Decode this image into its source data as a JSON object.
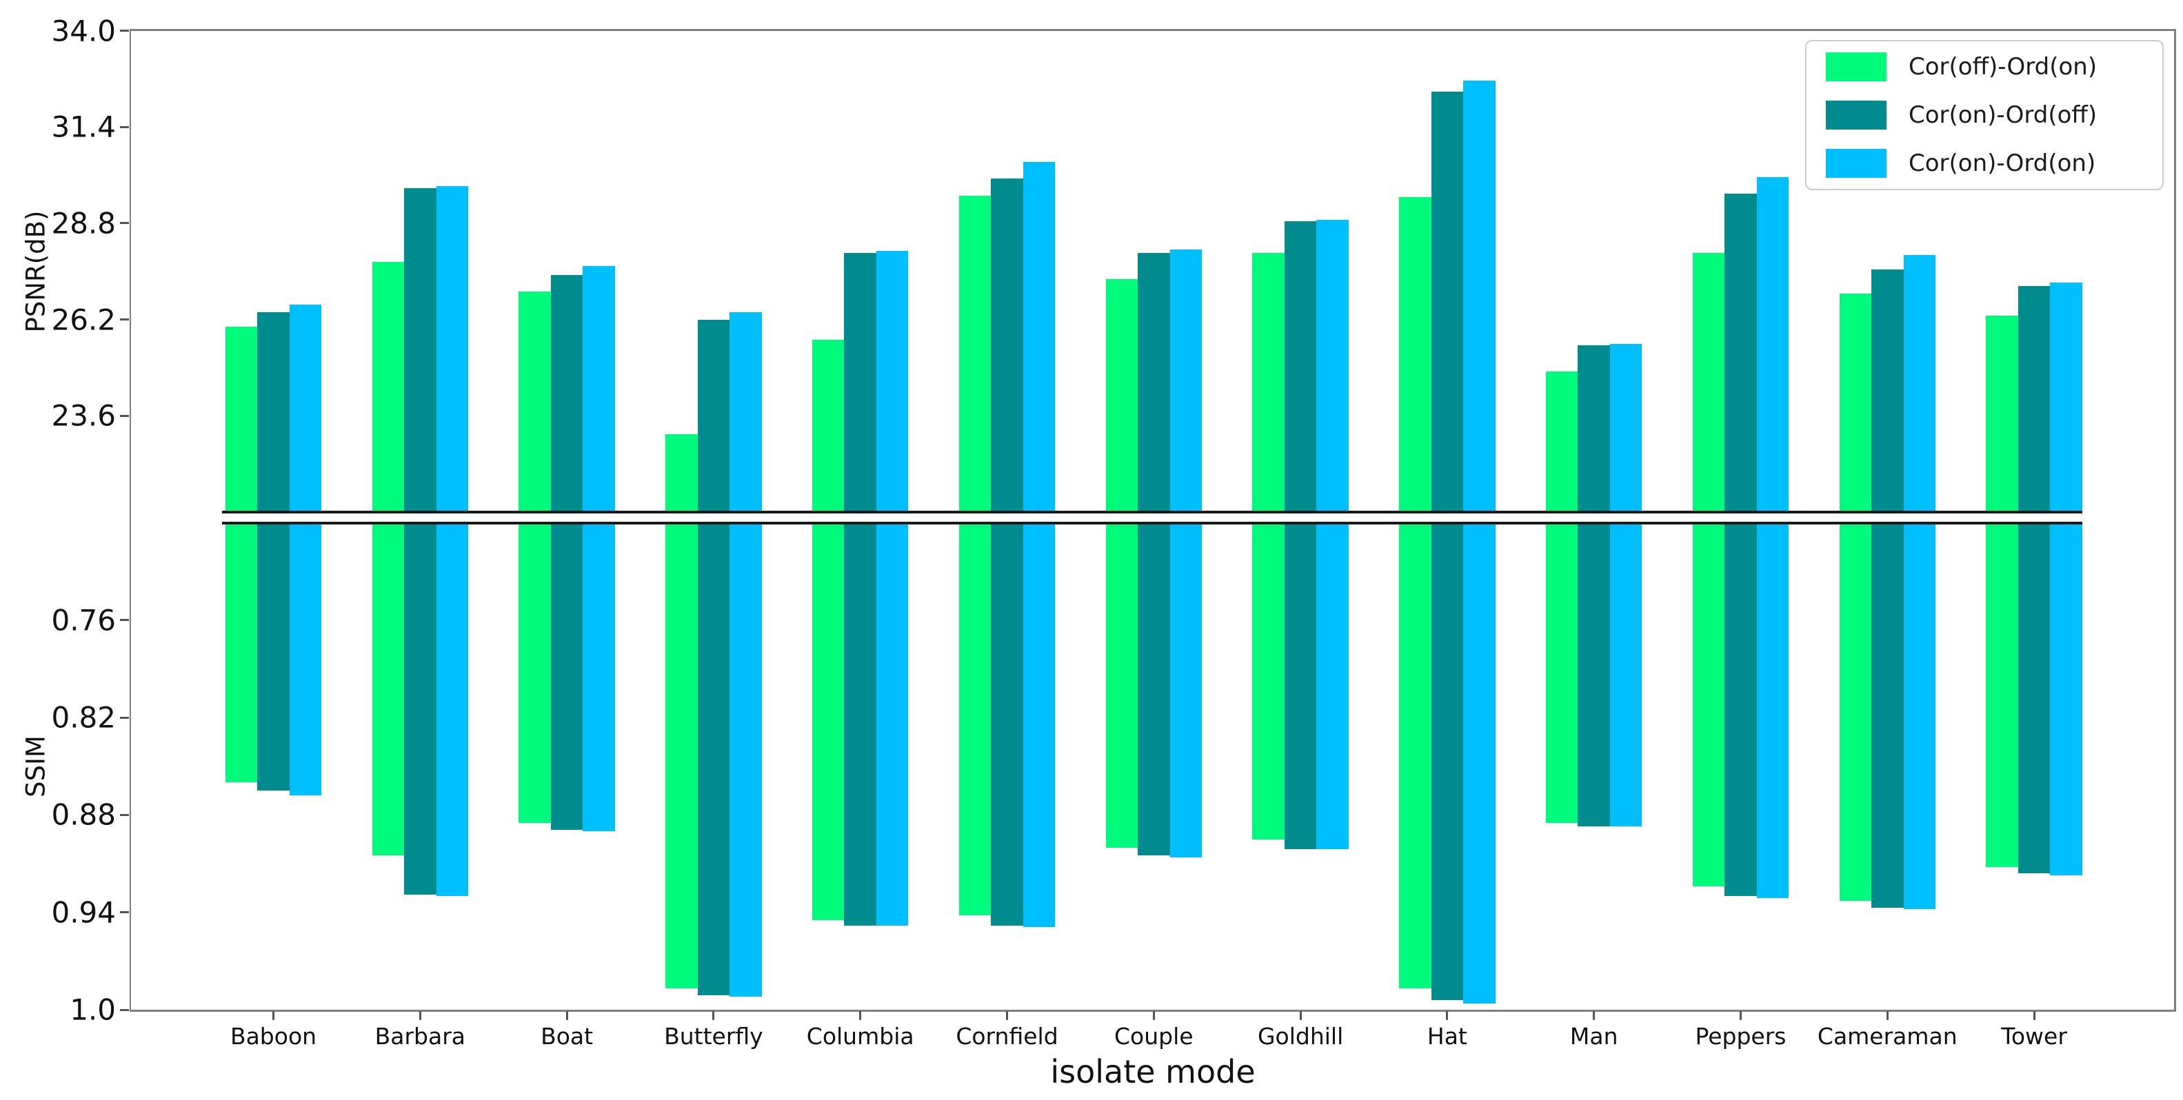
{
  "chart_data": {
    "type": "bar",
    "title": "",
    "xlabel": "isolate mode",
    "categories": [
      "Baboon",
      "Barbara",
      "Boat",
      "Butterfly",
      "Columbia",
      "Cornfield",
      "Couple",
      "Goldhill",
      "Hat",
      "Man",
      "Peppers",
      "Cameraman",
      "Tower"
    ],
    "legend_position": "upper right",
    "grid": false,
    "panels": [
      {
        "id": "psnr",
        "ylabel": "PSNR(dB)",
        "ylim": [
          21.0,
          34.0
        ],
        "yticks": [
          "34.0",
          "31.4",
          "28.8",
          "26.2",
          "23.6"
        ],
        "ytick_values": [
          34.0,
          31.4,
          28.8,
          26.2,
          23.6
        ],
        "direction": "up",
        "series": [
          {
            "name": "Cor(off)-Ord(on)",
            "values": [
              26.0,
              27.75,
              26.95,
              23.1,
              25.65,
              29.55,
              27.3,
              28.0,
              29.5,
              24.8,
              28.0,
              26.9,
              26.3
            ]
          },
          {
            "name": "Cor(on)-Ord(off)",
            "values": [
              26.4,
              29.75,
              27.4,
              26.2,
              28.0,
              30.0,
              28.0,
              28.85,
              32.35,
              25.5,
              29.6,
              27.55,
              27.1
            ]
          },
          {
            "name": "Cor(on)-Ord(on)",
            "values": [
              26.6,
              29.8,
              27.65,
              26.4,
              28.05,
              30.45,
              28.1,
              28.9,
              32.65,
              25.55,
              30.05,
              27.95,
              27.2
            ]
          }
        ]
      },
      {
        "id": "ssim",
        "ylabel": "SSIM",
        "ylim": [
          0.7,
          1.0
        ],
        "yticks": [
          "0.76",
          "0.82",
          "0.88",
          "0.94",
          "1.0"
        ],
        "ytick_values": [
          0.76,
          0.82,
          0.88,
          0.94,
          1.0
        ],
        "direction": "down",
        "series": [
          {
            "name": "Cor(off)-Ord(on)",
            "values": [
              0.86,
              0.905,
              0.885,
              0.987,
              0.945,
              0.942,
              0.9,
              0.895,
              0.987,
              0.885,
              0.924,
              0.933,
              0.912
            ]
          },
          {
            "name": "Cor(on)-Ord(off)",
            "values": [
              0.865,
              0.929,
              0.889,
              0.991,
              0.948,
              0.948,
              0.905,
              0.901,
              0.994,
              0.887,
              0.93,
              0.937,
              0.916
            ]
          },
          {
            "name": "Cor(on)-Ord(on)",
            "values": [
              0.868,
              0.93,
              0.89,
              0.992,
              0.948,
              0.949,
              0.906,
              0.901,
              0.996,
              0.887,
              0.931,
              0.938,
              0.917
            ]
          }
        ]
      }
    ],
    "legend": [
      {
        "label": "Cor(off)-Ord(on)",
        "color": "#00FA7C"
      },
      {
        "label": "Cor(on)-Ord(off)",
        "color": "#008B8E"
      },
      {
        "label": "Cor(on)-Ord(on)",
        "color": "#00BFFF"
      }
    ],
    "colors": {
      "series1": "#00FA7C",
      "series2": "#008B8E",
      "series3": "#00BFFF",
      "spine": "#7f7f7f",
      "divider": "#1a1a1a",
      "text": "#111111"
    }
  }
}
